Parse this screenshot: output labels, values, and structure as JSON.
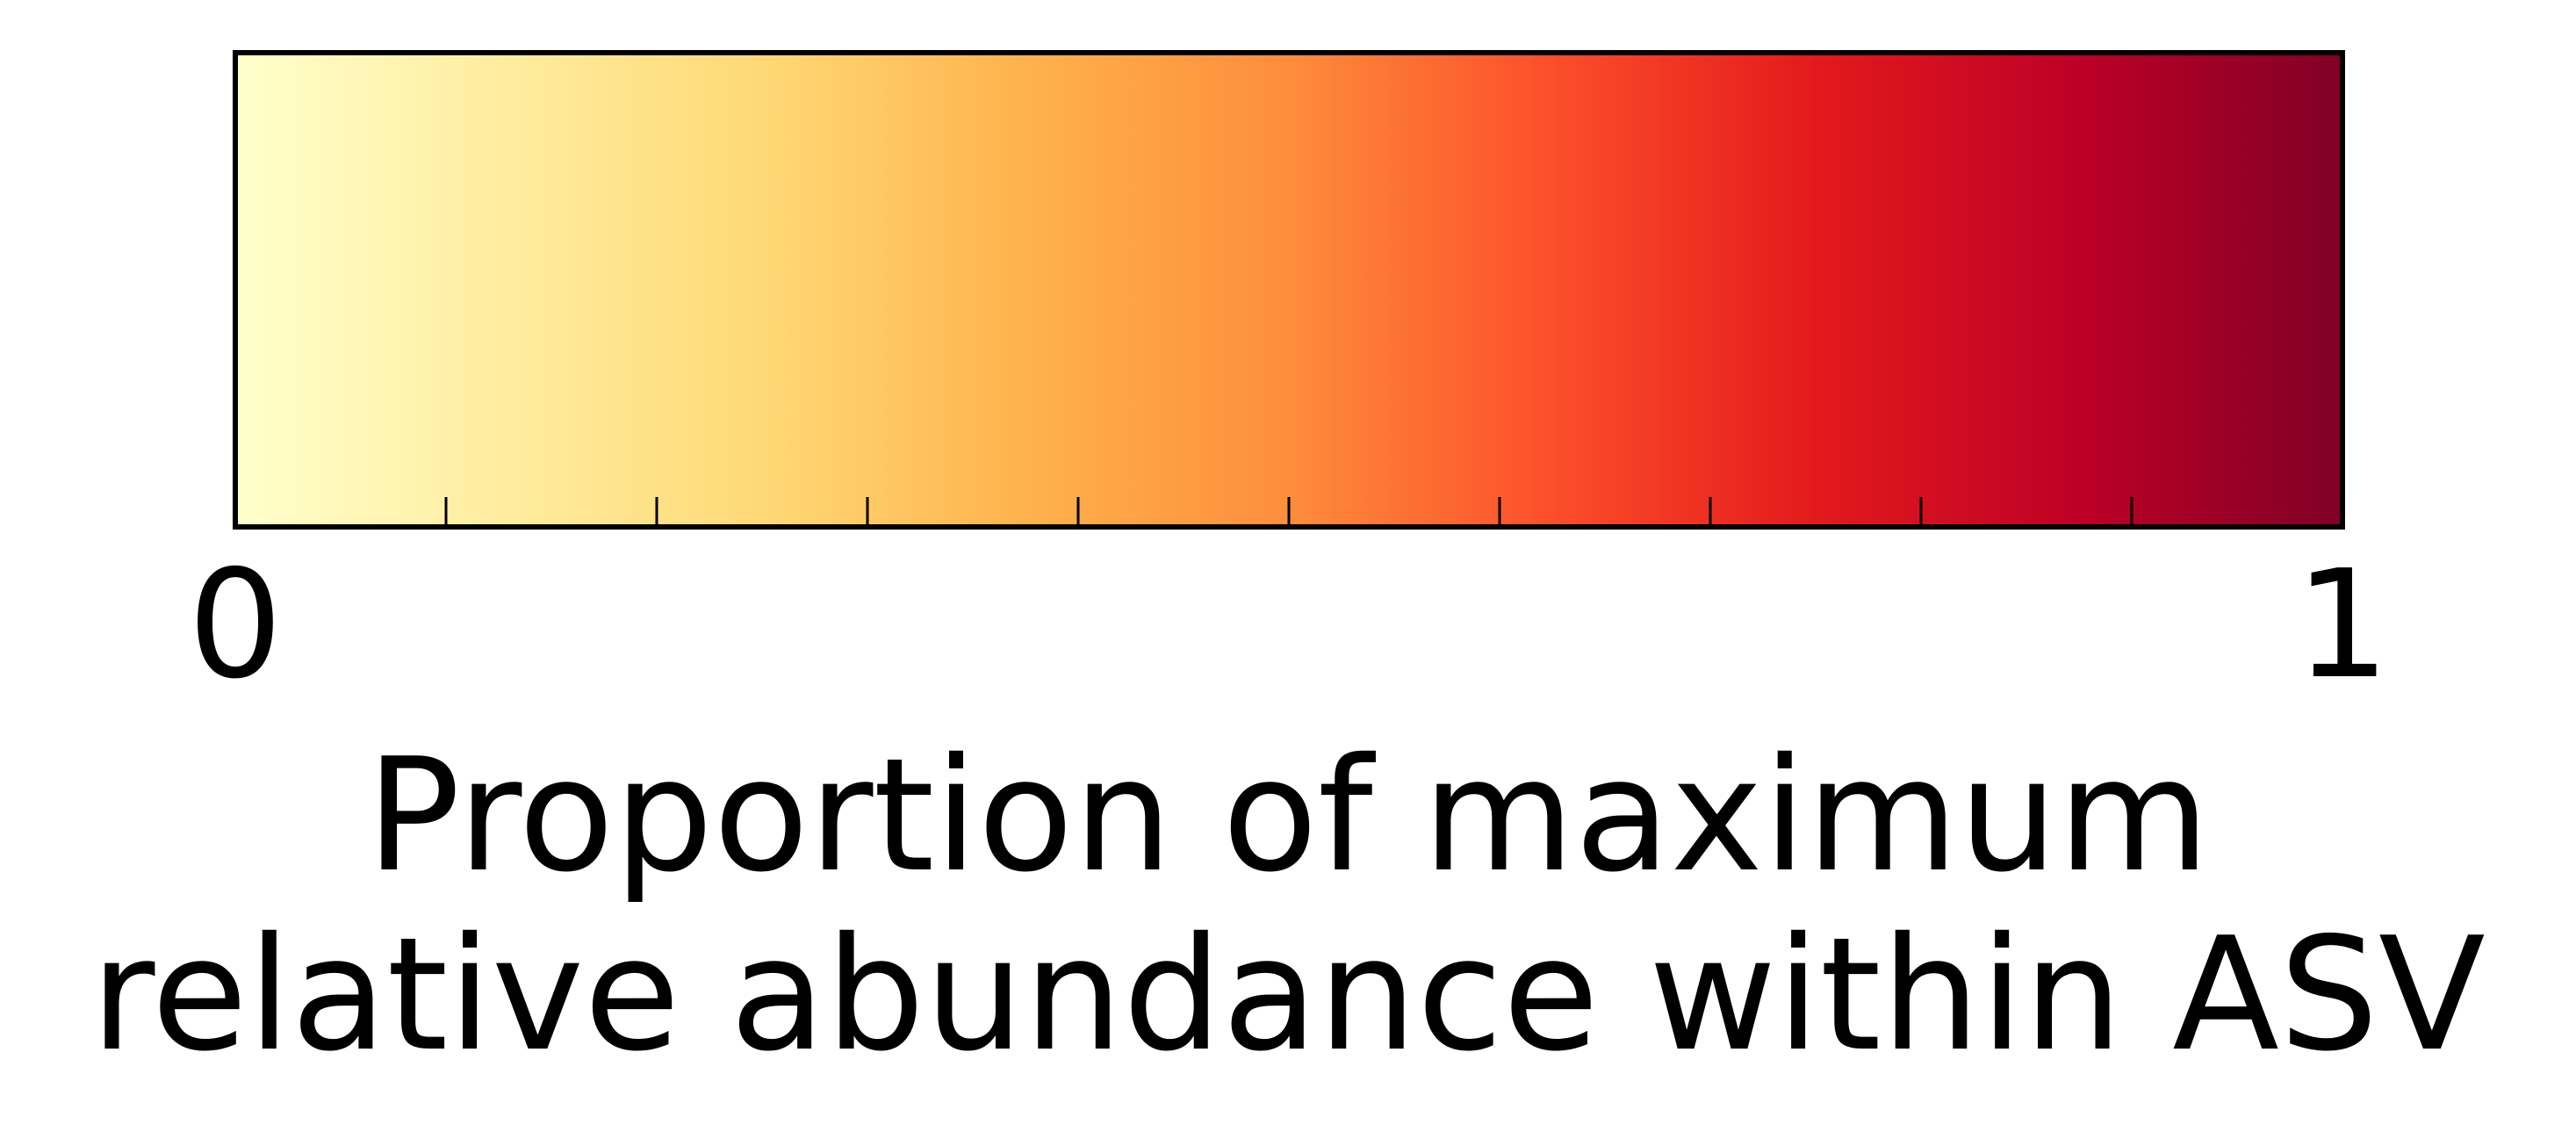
{
  "chart_data": {
    "type": "heatmap",
    "kind": "colorbar",
    "orientation": "horizontal",
    "colormap": "YlOrRd",
    "color_stops": [
      {
        "value": 0.0,
        "color": "#ffffcc"
      },
      {
        "value": 0.125,
        "color": "#ffeda0"
      },
      {
        "value": 0.25,
        "color": "#fed976"
      },
      {
        "value": 0.375,
        "color": "#feb24c"
      },
      {
        "value": 0.5,
        "color": "#fd8d3c"
      },
      {
        "value": 0.625,
        "color": "#fc4e2a"
      },
      {
        "value": 0.75,
        "color": "#e31a1c"
      },
      {
        "value": 0.875,
        "color": "#bd0026"
      },
      {
        "value": 1.0,
        "color": "#800026"
      }
    ],
    "range": [
      0,
      1
    ],
    "major_ticks": [
      {
        "value": 0,
        "label": "0"
      },
      {
        "value": 1,
        "label": "1"
      }
    ],
    "minor_ticks": [
      0.1,
      0.2,
      0.3,
      0.4,
      0.5,
      0.6,
      0.7,
      0.8,
      0.9
    ],
    "label_lines": [
      "Proportion of maximum",
      "relative abundance within ASV"
    ],
    "title": "",
    "grid": false
  }
}
